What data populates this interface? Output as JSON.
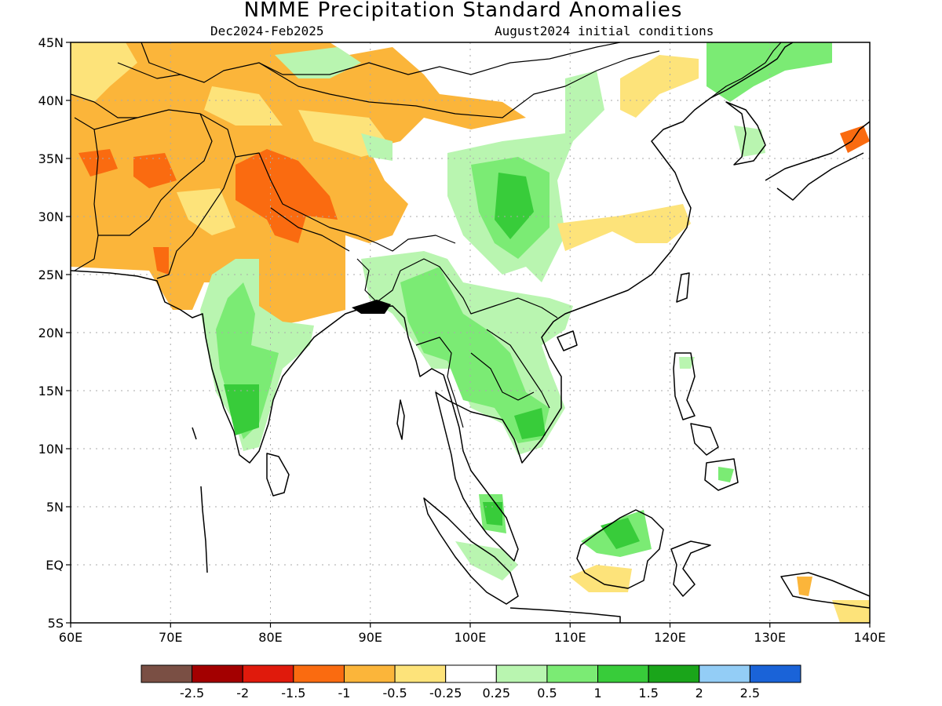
{
  "title": "NMME Precipitation Standard Anomalies",
  "period": "Dec2024-Feb2025",
  "initial_conditions": "August2024 initial conditions",
  "map": {
    "lon_range": [
      60,
      140
    ],
    "lat_range": [
      -5,
      45
    ],
    "lon_ticks": [
      "60E",
      "70E",
      "80E",
      "90E",
      "100E",
      "110E",
      "120E",
      "130E",
      "140E"
    ],
    "lat_ticks": [
      "45N",
      "40N",
      "35N",
      "30N",
      "25N",
      "20N",
      "15N",
      "10N",
      "5N",
      "EQ",
      "5S"
    ]
  },
  "colorbar": {
    "colors": [
      "#7a4f44",
      "#a30000",
      "#e01a0c",
      "#fa6b10",
      "#fbb53a",
      "#fde37a",
      "#ffffff",
      "#b9f5b0",
      "#7beb74",
      "#38cc3a",
      "#1aa51a",
      "#93cdf6",
      "#1a63d8"
    ],
    "labels": [
      "-2.5",
      "-2",
      "-1.5",
      "-1",
      "-0.5",
      "-0.25",
      "0.25",
      "0.5",
      "1",
      "1.5",
      "2",
      "2.5"
    ]
  }
}
